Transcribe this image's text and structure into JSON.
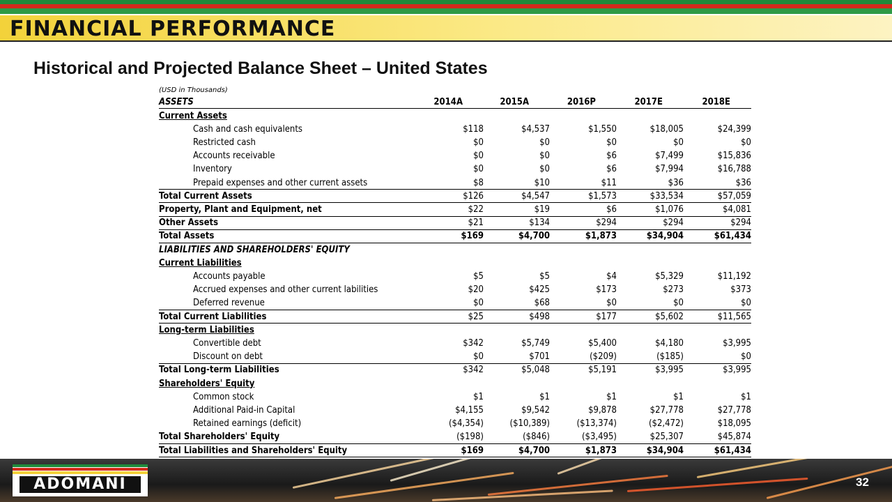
{
  "header": {
    "title": "FINANCIAL PERFORMANCE",
    "subtitle": "Historical and Projected Balance Sheet – United States"
  },
  "table": {
    "note": "(USD in Thousands)",
    "columns": [
      "ASSETS",
      "2014A",
      "2015A",
      "2016P",
      "2017E",
      "2018E"
    ],
    "rows": [
      [
        "Current Assets"
      ],
      [
        "Cash and cash equivalents",
        "$118",
        "$4,537",
        "$1,550",
        "$18,005",
        "$24,399"
      ],
      [
        "Restricted cash",
        "$0",
        "$0",
        "$0",
        "$0",
        "$0"
      ],
      [
        "Accounts receivable",
        "$0",
        "$0",
        "$6",
        "$7,499",
        "$15,836"
      ],
      [
        "Inventory",
        "$0",
        "$0",
        "$6",
        "$7,994",
        "$16,788"
      ],
      [
        "Prepaid expenses and other current assets",
        "$8",
        "$10",
        "$11",
        "$36",
        "$36"
      ],
      [
        "Total Current Assets",
        "$126",
        "$4,547",
        "$1,573",
        "$33,534",
        "$57,059"
      ],
      [
        "Property, Plant and Equipment, net",
        "$22",
        "$19",
        "$6",
        "$1,076",
        "$4,081"
      ],
      [
        "Other Assets",
        "$21",
        "$134",
        "$294",
        "$294",
        "$294"
      ],
      [
        "Total Assets",
        "$169",
        "$4,700",
        "$1,873",
        "$34,904",
        "$61,434"
      ],
      [
        "LIABILITIES AND SHAREHOLDERS' EQUITY"
      ],
      [
        "Current Liabilities"
      ],
      [
        "Accounts payable",
        "$5",
        "$5",
        "$4",
        "$5,329",
        "$11,192"
      ],
      [
        "Accrued expenses and other current labilities",
        "$20",
        "$425",
        "$173",
        "$273",
        "$373"
      ],
      [
        "Deferred revenue",
        "$0",
        "$68",
        "$0",
        "$0",
        "$0"
      ],
      [
        "Total Current Liabilities",
        "$25",
        "$498",
        "$177",
        "$5,602",
        "$11,565"
      ],
      [
        "Long-term Liabilities"
      ],
      [
        "Convertible debt",
        "$342",
        "$5,749",
        "$5,400",
        "$4,180",
        "$3,995"
      ],
      [
        "Discount on debt",
        "$0",
        "$701",
        "($209)",
        "($185)",
        "$0"
      ],
      [
        "Total Long-term Liabilities",
        "$342",
        "$5,048",
        "$5,191",
        "$3,995",
        "$3,995"
      ],
      [
        "Shareholders' Equity"
      ],
      [
        "Common stock",
        "$1",
        "$1",
        "$1",
        "$1",
        "$1"
      ],
      [
        "Additional Paid-in Capital",
        "$4,155",
        "$9,542",
        "$9,878",
        "$27,778",
        "$27,778"
      ],
      [
        "Retained earnings (deficit)",
        "($4,354)",
        "($10,389)",
        "($13,374)",
        "($2,472)",
        "$18,095"
      ],
      [
        "Total Shareholders' Equity",
        "($198)",
        "($846)",
        "($3,495)",
        "$25,307",
        "$45,874"
      ],
      [
        "Total Liabilities and Shareholders' Equity",
        "$169",
        "$4,700",
        "$1,873",
        "$34,904",
        "$61,434"
      ]
    ]
  },
  "footer": {
    "logo": "ADOMANI",
    "page": "32"
  }
}
